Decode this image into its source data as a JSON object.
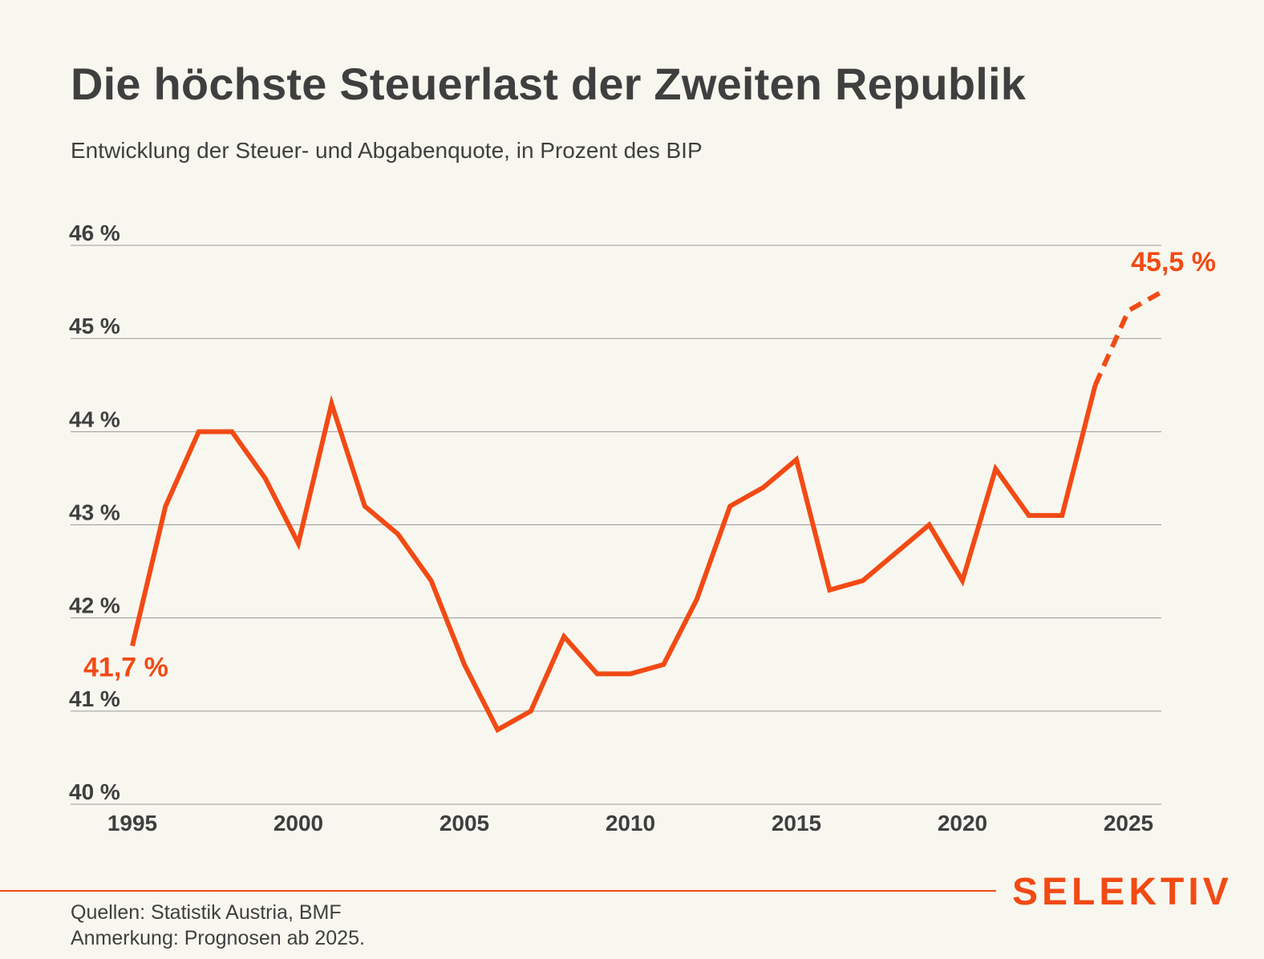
{
  "title": "Die höchste Steuerlast der Zweiten Republik",
  "subtitle": "Entwicklung der Steuer- und Abgabenquote, in Prozent des BIP",
  "source": "Quellen: Statistik Austria, BMF",
  "note": "Anmerkung: Prognosen ab 2025.",
  "brand": "SELEKTIV",
  "colors": {
    "line": "#f24a14",
    "text": "#3f3f3f",
    "grid": "#999999",
    "background": "#f8f7ef"
  },
  "chart_data": {
    "type": "line",
    "title": "Die höchste Steuerlast der Zweiten Republik",
    "subtitle": "Entwicklung der Steuer- und Abgabenquote, in Prozent des BIP",
    "xlabel": "",
    "ylabel": "",
    "xlim": [
      1995,
      2026
    ],
    "ylim": [
      40,
      46
    ],
    "grid": "horizontal",
    "y_ticks": [
      {
        "value": 46,
        "label": "46 %"
      },
      {
        "value": 45,
        "label": "45 %"
      },
      {
        "value": 44,
        "label": "44 %"
      },
      {
        "value": 43,
        "label": "43 %"
      },
      {
        "value": 42,
        "label": "42 %"
      },
      {
        "value": 41,
        "label": "41 %"
      },
      {
        "value": 40,
        "label": "40 %"
      }
    ],
    "x_ticks": [
      {
        "value": 1995,
        "label": "1995"
      },
      {
        "value": 2000,
        "label": "2000"
      },
      {
        "value": 2005,
        "label": "2005"
      },
      {
        "value": 2010,
        "label": "2010"
      },
      {
        "value": 2015,
        "label": "2015"
      },
      {
        "value": 2020,
        "label": "2020"
      },
      {
        "value": 2025,
        "label": "2025"
      }
    ],
    "x": [
      1995,
      1996,
      1997,
      1998,
      1999,
      2000,
      2001,
      2002,
      2003,
      2004,
      2005,
      2006,
      2007,
      2008,
      2009,
      2010,
      2011,
      2012,
      2013,
      2014,
      2015,
      2016,
      2017,
      2018,
      2019,
      2020,
      2021,
      2022,
      2023,
      2024,
      2025,
      2026
    ],
    "series": [
      {
        "values": [
          41.7,
          43.2,
          44.0,
          44.0,
          43.5,
          42.8,
          44.3,
          43.2,
          42.9,
          42.4,
          41.5,
          40.8,
          41.0,
          41.8,
          41.4,
          41.4,
          41.5,
          42.2,
          43.2,
          43.4,
          43.7,
          42.3,
          42.4,
          42.7,
          43.0,
          42.4,
          43.6,
          43.1,
          43.1,
          44.5,
          45.3,
          45.5
        ],
        "forecast_from": 2024,
        "color": "#f24a14"
      }
    ],
    "annotations": [
      {
        "x": 1995,
        "y": 41.7,
        "label": "41,7 %"
      },
      {
        "x": 2026,
        "y": 45.5,
        "label": "45,5 %"
      }
    ]
  }
}
